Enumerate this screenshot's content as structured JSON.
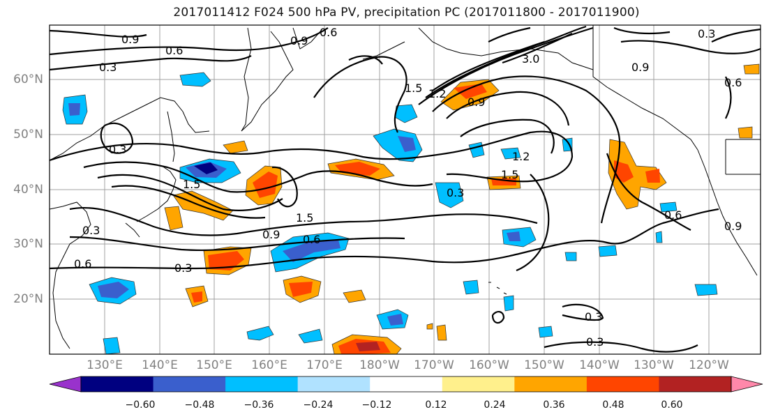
{
  "title": "2017011412 F024 500 hPa PV, precipitation PC (2017011800 - 2017011900)",
  "lat_labels": [
    "60°N",
    "50°N",
    "40°N",
    "30°N",
    "20°N"
  ],
  "lon_labels": [
    "130°E",
    "140°E",
    "150°E",
    "160°E",
    "170°E",
    "180°W",
    "170°W",
    "160°W",
    "150°W",
    "140°W",
    "130°W",
    "120°W"
  ],
  "colorbar": {
    "ticks": [
      "−0.60",
      "−0.48",
      "−0.36",
      "−0.24",
      "−0.12",
      "0.12",
      "0.24",
      "0.36",
      "0.48",
      "0.60"
    ],
    "colors": [
      "#9932cc",
      "#000080",
      "#3a5fcd",
      "#00bfff",
      "#b0e2ff",
      "#ffffff",
      "#fff08c",
      "#ffa500",
      "#ff4500",
      "#b22222",
      "#ff88aa"
    ]
  },
  "contour_labels": [
    "0.9",
    "0.6",
    "0.3",
    "0.6",
    "0.9",
    "0.3",
    "3.0",
    "1.5",
    "1.2",
    "0.9",
    "0.9",
    "0.6",
    "1.2",
    "1.5",
    "0.3",
    "0.6",
    "1.5",
    "1.5",
    "0.3",
    "0.9",
    "0.6",
    "0.3",
    "0.6",
    "0.3",
    "0.3",
    "0.3",
    "0.9"
  ],
  "map": {
    "lat_range": [
      10,
      70
    ],
    "lon_range": [
      120,
      255
    ],
    "field": "500 hPa PV",
    "shading": "precipitation PC"
  }
}
